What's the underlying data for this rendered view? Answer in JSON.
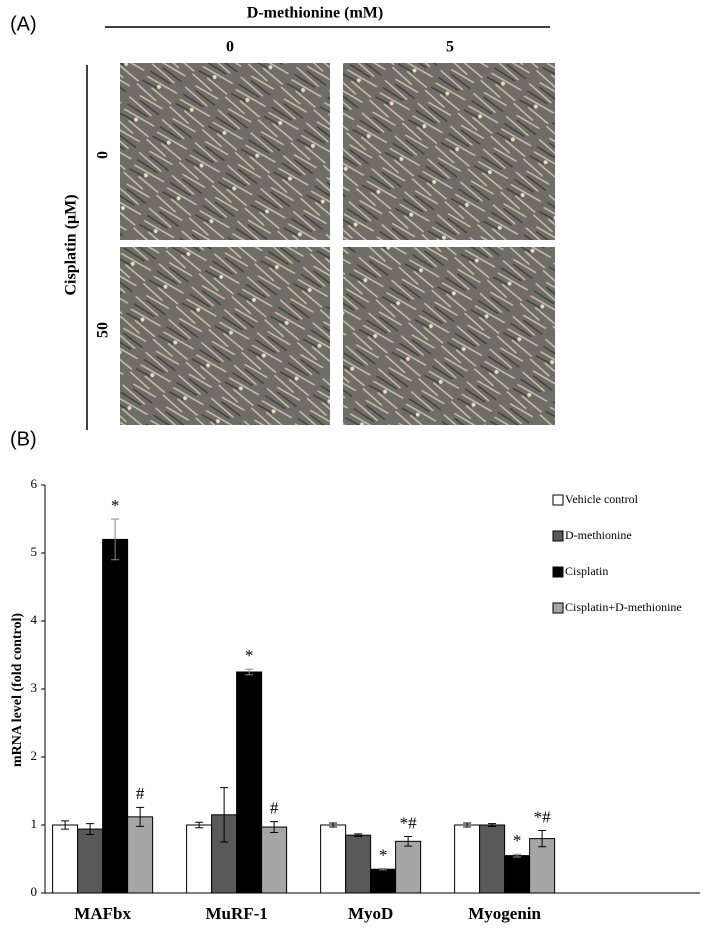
{
  "panel_a": {
    "label": "(A)",
    "column_header": "D-methionine (mM)",
    "columns": [
      "0",
      "5"
    ],
    "row_header": "Cisplatin (μM)",
    "rows": [
      "0",
      "50"
    ]
  },
  "panel_b": {
    "label": "(B)"
  },
  "chart_data": {
    "type": "bar",
    "y_label": "mRNA level (fold control)",
    "categories": [
      "MAFbx",
      "MuRF-1",
      "MyoD",
      "Myogenin"
    ],
    "series": [
      {
        "name": "Vehicle control",
        "color": "#ffffff",
        "values": [
          1.0,
          1.0,
          1.0,
          1.0
        ],
        "errors": [
          0.06,
          0.04,
          0.03,
          0.03
        ]
      },
      {
        "name": "D-methionine",
        "color": "#595959",
        "values": [
          0.94,
          1.15,
          0.85,
          1.0
        ],
        "errors": [
          0.08,
          0.4,
          0.02,
          0.02
        ]
      },
      {
        "name": "Cisplatin",
        "color": "#000000",
        "values": [
          5.2,
          3.25,
          0.35,
          0.55
        ],
        "errors": [
          0.3,
          0.04,
          0.01,
          0.02
        ],
        "annotations": [
          "*",
          "*",
          "*",
          "*"
        ]
      },
      {
        "name": "Cisplatin+D-methionine",
        "color": "#a6a6a6",
        "values": [
          1.12,
          0.97,
          0.76,
          0.8
        ],
        "errors": [
          0.14,
          0.08,
          0.07,
          0.12
        ],
        "annotations": [
          "#",
          "#",
          "*#",
          "*#"
        ]
      }
    ],
    "ylim": [
      0,
      6
    ],
    "yticks": [
      0,
      1,
      2,
      3,
      4,
      5,
      6
    ],
    "grid": false,
    "legend": "top-right"
  }
}
